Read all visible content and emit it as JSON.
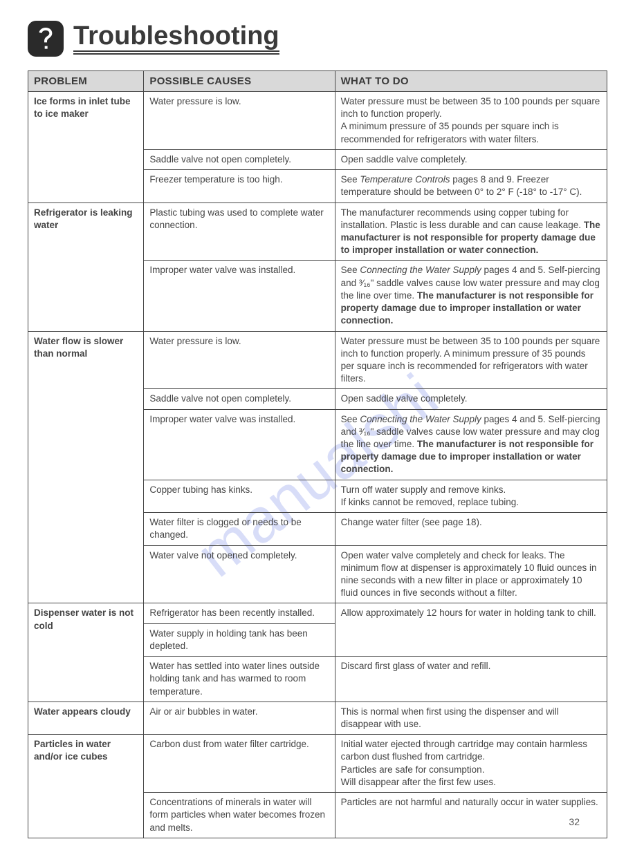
{
  "page_number": "32",
  "watermark_text": "manualshi",
  "title": "Troubleshooting",
  "columns": [
    "PROBLEM",
    "POSSIBLE CAUSES",
    "WHAT TO DO"
  ],
  "col_widths": [
    "20%",
    "33%",
    "47%"
  ],
  "colors": {
    "header_bg": "#d9d9d9",
    "border": "#444444",
    "text": "#444444",
    "title": "#3a3a3a",
    "icon_bg": "#2a2a2a",
    "watermark": "#aab6f0"
  },
  "rows": [
    {
      "problem": "Ice forms in inlet tube to ice maker",
      "problem_rowspan": 3,
      "cause": "Water pressure is low.",
      "action": [
        {
          "t": "Water pressure must be between 35 to 100 pounds per square inch to function properly."
        },
        {
          "br": true
        },
        {
          "t": "A minimum pressure of 35 pounds per square inch is recommended for refrigerators with water filters."
        }
      ]
    },
    {
      "cause": "Saddle valve not open completely.",
      "action": [
        {
          "t": "Open saddle valve completely."
        }
      ]
    },
    {
      "cause": "Freezer temperature is too high.",
      "action": [
        {
          "t": "See "
        },
        {
          "i": "Temperature Controls"
        },
        {
          "t": " pages 8 and 9. Freezer temperature should be between 0° to 2° F (-18° to -17° C)."
        }
      ]
    },
    {
      "problem": "Refrigerator is leaking water",
      "problem_rowspan": 2,
      "cause": "Plastic tubing was used to complete water connection.",
      "action": [
        {
          "t": "The manufacturer recommends using copper tubing for installation. Plastic is less durable and can cause leakage. "
        },
        {
          "b": "The manufacturer is not responsible for property damage due to improper installation or water connection."
        }
      ]
    },
    {
      "cause": "Improper water valve was installed.",
      "action": [
        {
          "t": "See "
        },
        {
          "i": "Connecting the Water Supply"
        },
        {
          "t": " pages 4 and 5. Self-piercing and ³⁄₁₆\" saddle valves cause low water pressure and may clog the line over time. "
        },
        {
          "b": "The manufacturer is not responsible for property damage due to improper installation or water connection."
        }
      ]
    },
    {
      "problem": "Water flow is slower than normal",
      "problem_rowspan": 6,
      "cause": "Water pressure is low.",
      "action": [
        {
          "t": "Water pressure must be between 35 to 100 pounds per square inch to function properly. A minimum pressure of 35 pounds per square inch is recommended for refrigerators with water filters."
        }
      ]
    },
    {
      "cause": "Saddle valve not open completely.",
      "action": [
        {
          "t": "Open saddle valve completely."
        }
      ]
    },
    {
      "cause": "Improper water valve was installed.",
      "action": [
        {
          "t": "See "
        },
        {
          "i": "Connecting the Water Supply"
        },
        {
          "t": " pages 4 and 5. Self-piercing and ³⁄₁₆\" saddle valves cause low water pressure and may clog the line over time. "
        },
        {
          "b": "The manufacturer is not responsible for property damage due to improper installation or water connection."
        }
      ]
    },
    {
      "cause": "Copper tubing has kinks.",
      "action": [
        {
          "t": "Turn off water supply and remove kinks."
        },
        {
          "br": true
        },
        {
          "t": "If kinks cannot be removed, replace tubing."
        }
      ]
    },
    {
      "cause": "Water filter is clogged or needs to be changed.",
      "action": [
        {
          "t": "Change water filter (see page 18)."
        }
      ]
    },
    {
      "cause": "Water valve not opened completely.",
      "action": [
        {
          "t": "Open water valve completely and check for leaks. The minimum flow at dispenser is approximately 10 fluid ounces in nine seconds with a new filter in place or approximately 10 fluid ounces in five seconds without a filter."
        }
      ]
    },
    {
      "problem": "Dispenser water is not cold",
      "problem_rowspan": 3,
      "cause": "Refrigerator has been recently installed.",
      "action_rowspan": 2,
      "action": [
        {
          "t": "Allow approximately 12 hours for water in holding tank to chill."
        }
      ]
    },
    {
      "cause": "Water supply in holding tank has been depleted."
    },
    {
      "cause": "Water has settled into water lines outside holding tank and has warmed to room temperature.",
      "action": [
        {
          "t": "Discard first glass of water and refill."
        }
      ]
    },
    {
      "problem": "Water appears cloudy",
      "problem_rowspan": 1,
      "cause": "Air or air bubbles in water.",
      "action": [
        {
          "t": "This is normal when first using the dispenser and will disappear with use."
        }
      ]
    },
    {
      "problem": "Particles in water and/or ice cubes",
      "problem_rowspan": 2,
      "cause": "Carbon dust from water filter cartridge.",
      "action": [
        {
          "t": "Initial water ejected through cartridge may contain harmless carbon dust flushed from cartridge."
        },
        {
          "br": true
        },
        {
          "t": "Particles are safe for consumption."
        },
        {
          "br": true
        },
        {
          "t": "Will disappear after the first few uses."
        }
      ]
    },
    {
      "cause": "Concentrations of minerals in water will form particles when water becomes frozen and melts.",
      "action": [
        {
          "t": "Particles are not harmful and naturally occur in water supplies."
        }
      ]
    }
  ]
}
